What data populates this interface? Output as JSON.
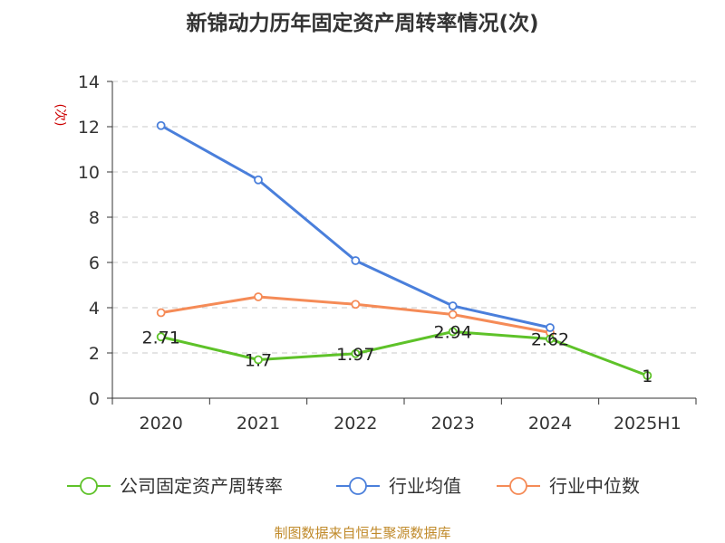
{
  "title": "新锦动力历年固定资产周转率情况(次)",
  "unit_label": "(次)",
  "footer": "制图数据来自恒生聚源数据库",
  "colors": {
    "title": "#333333",
    "footer": "#c08a2a",
    "unit": "#cc0000",
    "axis": "#333333",
    "grid": "#c8c8c8"
  },
  "chart_data": {
    "type": "line",
    "categories": [
      "2020",
      "2021",
      "2022",
      "2023",
      "2024",
      "2025H1"
    ],
    "ylim": [
      0,
      14
    ],
    "yticks": [
      0,
      2,
      4,
      6,
      8,
      10,
      12,
      14
    ],
    "grid": true,
    "legend_position": "bottom",
    "series": [
      {
        "name": "公司固定资产周转率",
        "color": "#5ec229",
        "labels": true,
        "values": [
          2.71,
          1.7,
          1.97,
          2.94,
          2.62,
          1
        ]
      },
      {
        "name": "行业均值",
        "color": "#4a7fdb",
        "labels": false,
        "values": [
          12.05,
          9.65,
          6.08,
          4.08,
          3.12,
          null
        ]
      },
      {
        "name": "行业中位数",
        "color": "#f58b57",
        "labels": false,
        "values": [
          3.78,
          4.48,
          4.15,
          3.7,
          2.9,
          null
        ]
      }
    ]
  }
}
